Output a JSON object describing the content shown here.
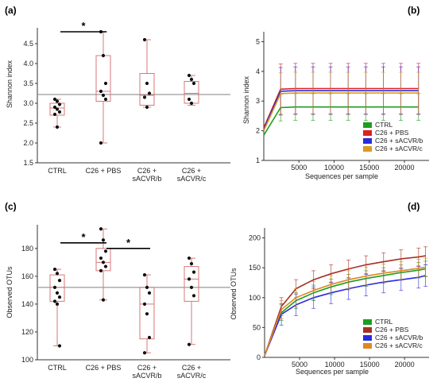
{
  "panels": [
    {
      "label": "(a)",
      "chart_data": {
        "type": "box",
        "ylabel": "Shannon index",
        "ylim": [
          1.5,
          4.9
        ],
        "yticks": [
          1.5,
          2.0,
          2.5,
          3.0,
          3.5,
          4.0,
          4.5
        ],
        "tick_format": "one_decimal",
        "reference_line": 3.22,
        "categories": [
          [
            "CTRL"
          ],
          [
            "C26 + PBS"
          ],
          [
            "C26 +",
            "sACVR/b"
          ],
          [
            "C26 +",
            "sACVR/c"
          ]
        ],
        "boxes": [
          {
            "min": 2.4,
            "q1": 2.7,
            "median": 2.88,
            "q3": 3.0,
            "max": 3.1,
            "points": [
              3.1,
              3.05,
              2.97,
              2.9,
              2.85,
              2.78,
              2.72,
              2.4
            ]
          },
          {
            "min": 2.0,
            "q1": 3.05,
            "median": 3.3,
            "q3": 4.2,
            "max": 4.8,
            "points": [
              4.8,
              4.2,
              3.5,
              3.3,
              3.2,
              3.1,
              2.0
            ]
          },
          {
            "min": 2.9,
            "q1": 2.95,
            "median": 3.2,
            "q3": 3.75,
            "max": 4.6,
            "points": [
              4.6,
              3.5,
              3.25,
              3.15,
              2.9
            ]
          },
          {
            "min": 2.95,
            "q1": 3.0,
            "median": 3.25,
            "q3": 3.55,
            "max": 3.7,
            "points": [
              3.7,
              3.6,
              3.5,
              3.1,
              3.0
            ]
          }
        ],
        "significance": [
          {
            "from": 0,
            "to": 1,
            "y": 4.8,
            "label": "*"
          }
        ]
      }
    },
    {
      "label": "(b)",
      "chart_data": {
        "type": "line",
        "xlabel": "Sequences per sample",
        "ylabel": "Shannon index",
        "xlim": [
          0,
          23500
        ],
        "ylim": [
          1,
          5.2
        ],
        "xticks": [
          5000,
          10000,
          15000,
          20000
        ],
        "yticks": [
          1,
          2,
          3,
          4,
          5
        ],
        "tick_format": "integer",
        "x": [
          0,
          2400,
          4500,
          7000,
          9500,
          12000,
          14500,
          17000,
          19500,
          22000
        ],
        "series": [
          {
            "name": "CTRL",
            "color": "#1e9e1e",
            "values": [
              1.85,
              2.78,
              2.8,
              2.8,
              2.8,
              2.8,
              2.8,
              2.8,
              2.8,
              2.8
            ],
            "err": 0.45
          },
          {
            "name": "C26 + PBS",
            "color": "#dd2020",
            "values": [
              2.1,
              3.4,
              3.42,
              3.42,
              3.42,
              3.42,
              3.42,
              3.42,
              3.42,
              3.42
            ],
            "err": 0.85
          },
          {
            "name": "C26 + sACVR/b",
            "color": "#2a2ae0",
            "values": [
              2.05,
              3.33,
              3.35,
              3.35,
              3.35,
              3.35,
              3.35,
              3.35,
              3.35,
              3.35
            ],
            "err": 0.8
          },
          {
            "name": "C26 + sACVR/c",
            "color": "#dd9922",
            "values": [
              2.0,
              3.25,
              3.27,
              3.27,
              3.27,
              3.27,
              3.27,
              3.27,
              3.27,
              3.27
            ],
            "err": 0.7
          }
        ],
        "legend": "bottom-right"
      }
    },
    {
      "label": "(c)",
      "chart_data": {
        "type": "box",
        "ylabel": "Observed OTUs",
        "ylim": [
          100,
          197
        ],
        "yticks": [
          100,
          120,
          140,
          160,
          180
        ],
        "tick_format": "integer",
        "reference_line": 152,
        "categories": [
          [
            "CTRL"
          ],
          [
            "C26 + PBS"
          ],
          [
            "C26 +",
            "sACVR/b"
          ],
          [
            "C26 +",
            "sACVR/c"
          ]
        ],
        "boxes": [
          {
            "min": 110,
            "q1": 142,
            "median": 152,
            "q3": 161,
            "max": 165,
            "points": [
              165,
              162,
              157,
              152,
              148,
              145,
              142,
              140,
              110
            ]
          },
          {
            "min": 143,
            "q1": 164,
            "median": 170,
            "q3": 180,
            "max": 194,
            "points": [
              194,
              186,
              178,
              173,
              170,
              167,
              164,
              143
            ]
          },
          {
            "min": 105,
            "q1": 115,
            "median": 140,
            "q3": 152,
            "max": 161,
            "points": [
              161,
              152,
              148,
              140,
              133,
              116,
              105
            ]
          },
          {
            "min": 111,
            "q1": 142,
            "median": 158,
            "q3": 167,
            "max": 173,
            "points": [
              173,
              169,
              163,
              158,
              152,
              146,
              111
            ]
          }
        ],
        "significance": [
          {
            "from": 0,
            "to": 1,
            "y": 184,
            "label": "*"
          },
          {
            "from": 1,
            "to": 2,
            "y": 180,
            "label": "*"
          }
        ]
      }
    },
    {
      "label": "(d)",
      "chart_data": {
        "type": "line",
        "xlabel": "Sequences per sample",
        "ylabel": "Observed OTUs",
        "xlim": [
          0,
          23500
        ],
        "ylim": [
          0,
          210
        ],
        "xticks": [
          5000,
          10000,
          15000,
          20000
        ],
        "yticks": [
          0,
          50,
          100,
          150,
          200
        ],
        "tick_format": "integer",
        "x": [
          0,
          2400,
          4500,
          7000,
          9500,
          12000,
          14500,
          17000,
          19500,
          22000,
          23000
        ],
        "series": [
          {
            "name": "CTRL",
            "color": "#1e9e1e",
            "values": [
              3,
              75,
              95,
              108,
              118,
              126,
              132,
              137,
              142,
              146,
              148
            ],
            "err": 13
          },
          {
            "name": "C26 + PBS",
            "color": "#a83020",
            "values": [
              3,
              85,
              115,
              130,
              140,
              148,
              155,
              160,
              165,
              168,
              170
            ],
            "err": 15
          },
          {
            "name": "C26 + sACVR/b",
            "color": "#2a2ae0",
            "values": [
              3,
              72,
              88,
              100,
              108,
              115,
              121,
              126,
              130,
              134,
              137
            ],
            "err": 18
          },
          {
            "name": "C26 + sACVR/c",
            "color": "#dd8822",
            "values": [
              3,
              80,
              100,
              112,
              122,
              130,
              136,
              141,
              145,
              149,
              151
            ],
            "err": 15
          }
        ],
        "legend": "bottom-right"
      }
    }
  ]
}
